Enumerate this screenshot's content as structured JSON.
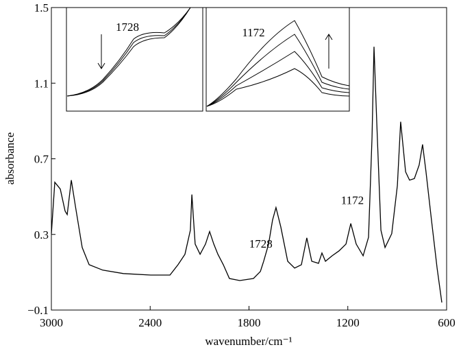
{
  "chart_data": {
    "type": "line",
    "y_label": "absorbance",
    "x_label": "wavenumber/cm⁻¹",
    "xlim": [
      3000,
      600
    ],
    "xticks": [
      3000,
      2400,
      1800,
      1200,
      600
    ],
    "ylim": [
      -0.1,
      1.5
    ],
    "yticks": [
      {
        "value": -0.1,
        "label": "−0.1"
      },
      0.3,
      0.7,
      1.1,
      1.5
    ],
    "annotations": [
      {
        "text": "1728",
        "x": 1728,
        "y": 0.23
      },
      {
        "text": "1172",
        "x": 1172,
        "y": 0.46
      }
    ],
    "inset_labels": [
      "1728",
      "1172"
    ],
    "series": [
      {
        "color": "#000000",
        "x": [
          3000,
          2979,
          2946,
          2917,
          2904,
          2879,
          2854,
          2813,
          2771,
          2688,
          2563,
          2397,
          2280,
          2231,
          2189,
          2156,
          2147,
          2127,
          2097,
          2064,
          2039,
          2014,
          1989,
          1956,
          1919,
          1856,
          1773,
          1731,
          1711,
          1681,
          1657,
          1636,
          1607,
          1565,
          1523,
          1482,
          1449,
          1419,
          1378,
          1357,
          1336,
          1295,
          1253,
          1211,
          1182,
          1149,
          1107,
          1074,
          1053,
          1041,
          1024,
          999,
          974,
          933,
          899,
          879,
          849,
          825,
          796,
          767,
          746,
          725,
          692,
          658,
          629
        ],
        "values": [
          0.304,
          0.576,
          0.54,
          0.424,
          0.405,
          0.587,
          0.449,
          0.231,
          0.14,
          0.111,
          0.093,
          0.085,
          0.085,
          0.14,
          0.195,
          0.322,
          0.511,
          0.249,
          0.195,
          0.249,
          0.315,
          0.249,
          0.195,
          0.14,
          0.067,
          0.056,
          0.067,
          0.104,
          0.158,
          0.249,
          0.376,
          0.442,
          0.34,
          0.158,
          0.122,
          0.14,
          0.282,
          0.158,
          0.147,
          0.202,
          0.158,
          0.187,
          0.213,
          0.249,
          0.358,
          0.249,
          0.187,
          0.285,
          0.813,
          1.293,
          0.885,
          0.322,
          0.231,
          0.304,
          0.558,
          0.896,
          0.631,
          0.587,
          0.595,
          0.667,
          0.776,
          0.631,
          0.376,
          0.122,
          -0.06
        ]
      }
    ]
  }
}
